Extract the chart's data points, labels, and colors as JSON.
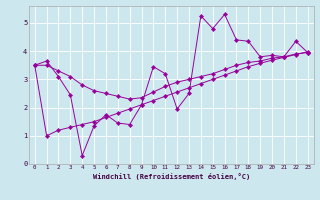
{
  "xlabel": "Windchill (Refroidissement éolien,°C)",
  "bg_color": "#cce8ee",
  "line_color": "#990099",
  "xlim": [
    -0.5,
    23.5
  ],
  "ylim": [
    0,
    5.6
  ],
  "xticks": [
    0,
    1,
    2,
    3,
    4,
    5,
    6,
    7,
    8,
    9,
    10,
    11,
    12,
    13,
    14,
    15,
    16,
    17,
    18,
    19,
    20,
    21,
    22,
    23
  ],
  "yticks": [
    0,
    1,
    2,
    3,
    4,
    5
  ],
  "series1_x": [
    0,
    1,
    2,
    3,
    4,
    5,
    6,
    7,
    8,
    9,
    10,
    11,
    12,
    13,
    14,
    15,
    16,
    17,
    18,
    19,
    20,
    21,
    22,
    23
  ],
  "series1_y": [
    3.5,
    3.65,
    3.1,
    2.45,
    0.3,
    1.35,
    1.75,
    1.45,
    1.4,
    2.1,
    3.45,
    3.2,
    1.95,
    2.5,
    5.25,
    4.8,
    5.3,
    4.4,
    4.35,
    3.8,
    3.85,
    3.8,
    4.35,
    3.95
  ],
  "series2_x": [
    0,
    23
  ],
  "series2_y": [
    3.5,
    4.0
  ],
  "series3_x": [
    0,
    23
  ],
  "series3_y": [
    3.5,
    4.0
  ],
  "trend1_x": [
    0,
    1,
    2,
    3,
    4,
    5,
    6,
    7,
    8,
    9,
    10,
    11,
    12,
    13,
    14,
    15,
    16,
    17,
    18,
    19,
    20,
    21,
    22,
    23
  ],
  "trend1_y": [
    3.5,
    3.5,
    3.3,
    3.1,
    2.8,
    2.6,
    2.5,
    2.4,
    2.3,
    2.35,
    2.55,
    2.75,
    2.9,
    3.0,
    3.1,
    3.2,
    3.35,
    3.5,
    3.6,
    3.65,
    3.75,
    3.8,
    3.9,
    3.95
  ],
  "trend2_x": [
    0,
    1,
    2,
    3,
    4,
    5,
    6,
    7,
    8,
    9,
    10,
    11,
    12,
    13,
    14,
    15,
    16,
    17,
    18,
    19,
    20,
    21,
    22,
    23
  ],
  "trend2_y": [
    3.5,
    1.0,
    1.2,
    1.3,
    1.4,
    1.5,
    1.65,
    1.8,
    1.95,
    2.1,
    2.25,
    2.4,
    2.55,
    2.7,
    2.85,
    3.0,
    3.15,
    3.3,
    3.45,
    3.57,
    3.68,
    3.78,
    3.88,
    3.98
  ]
}
